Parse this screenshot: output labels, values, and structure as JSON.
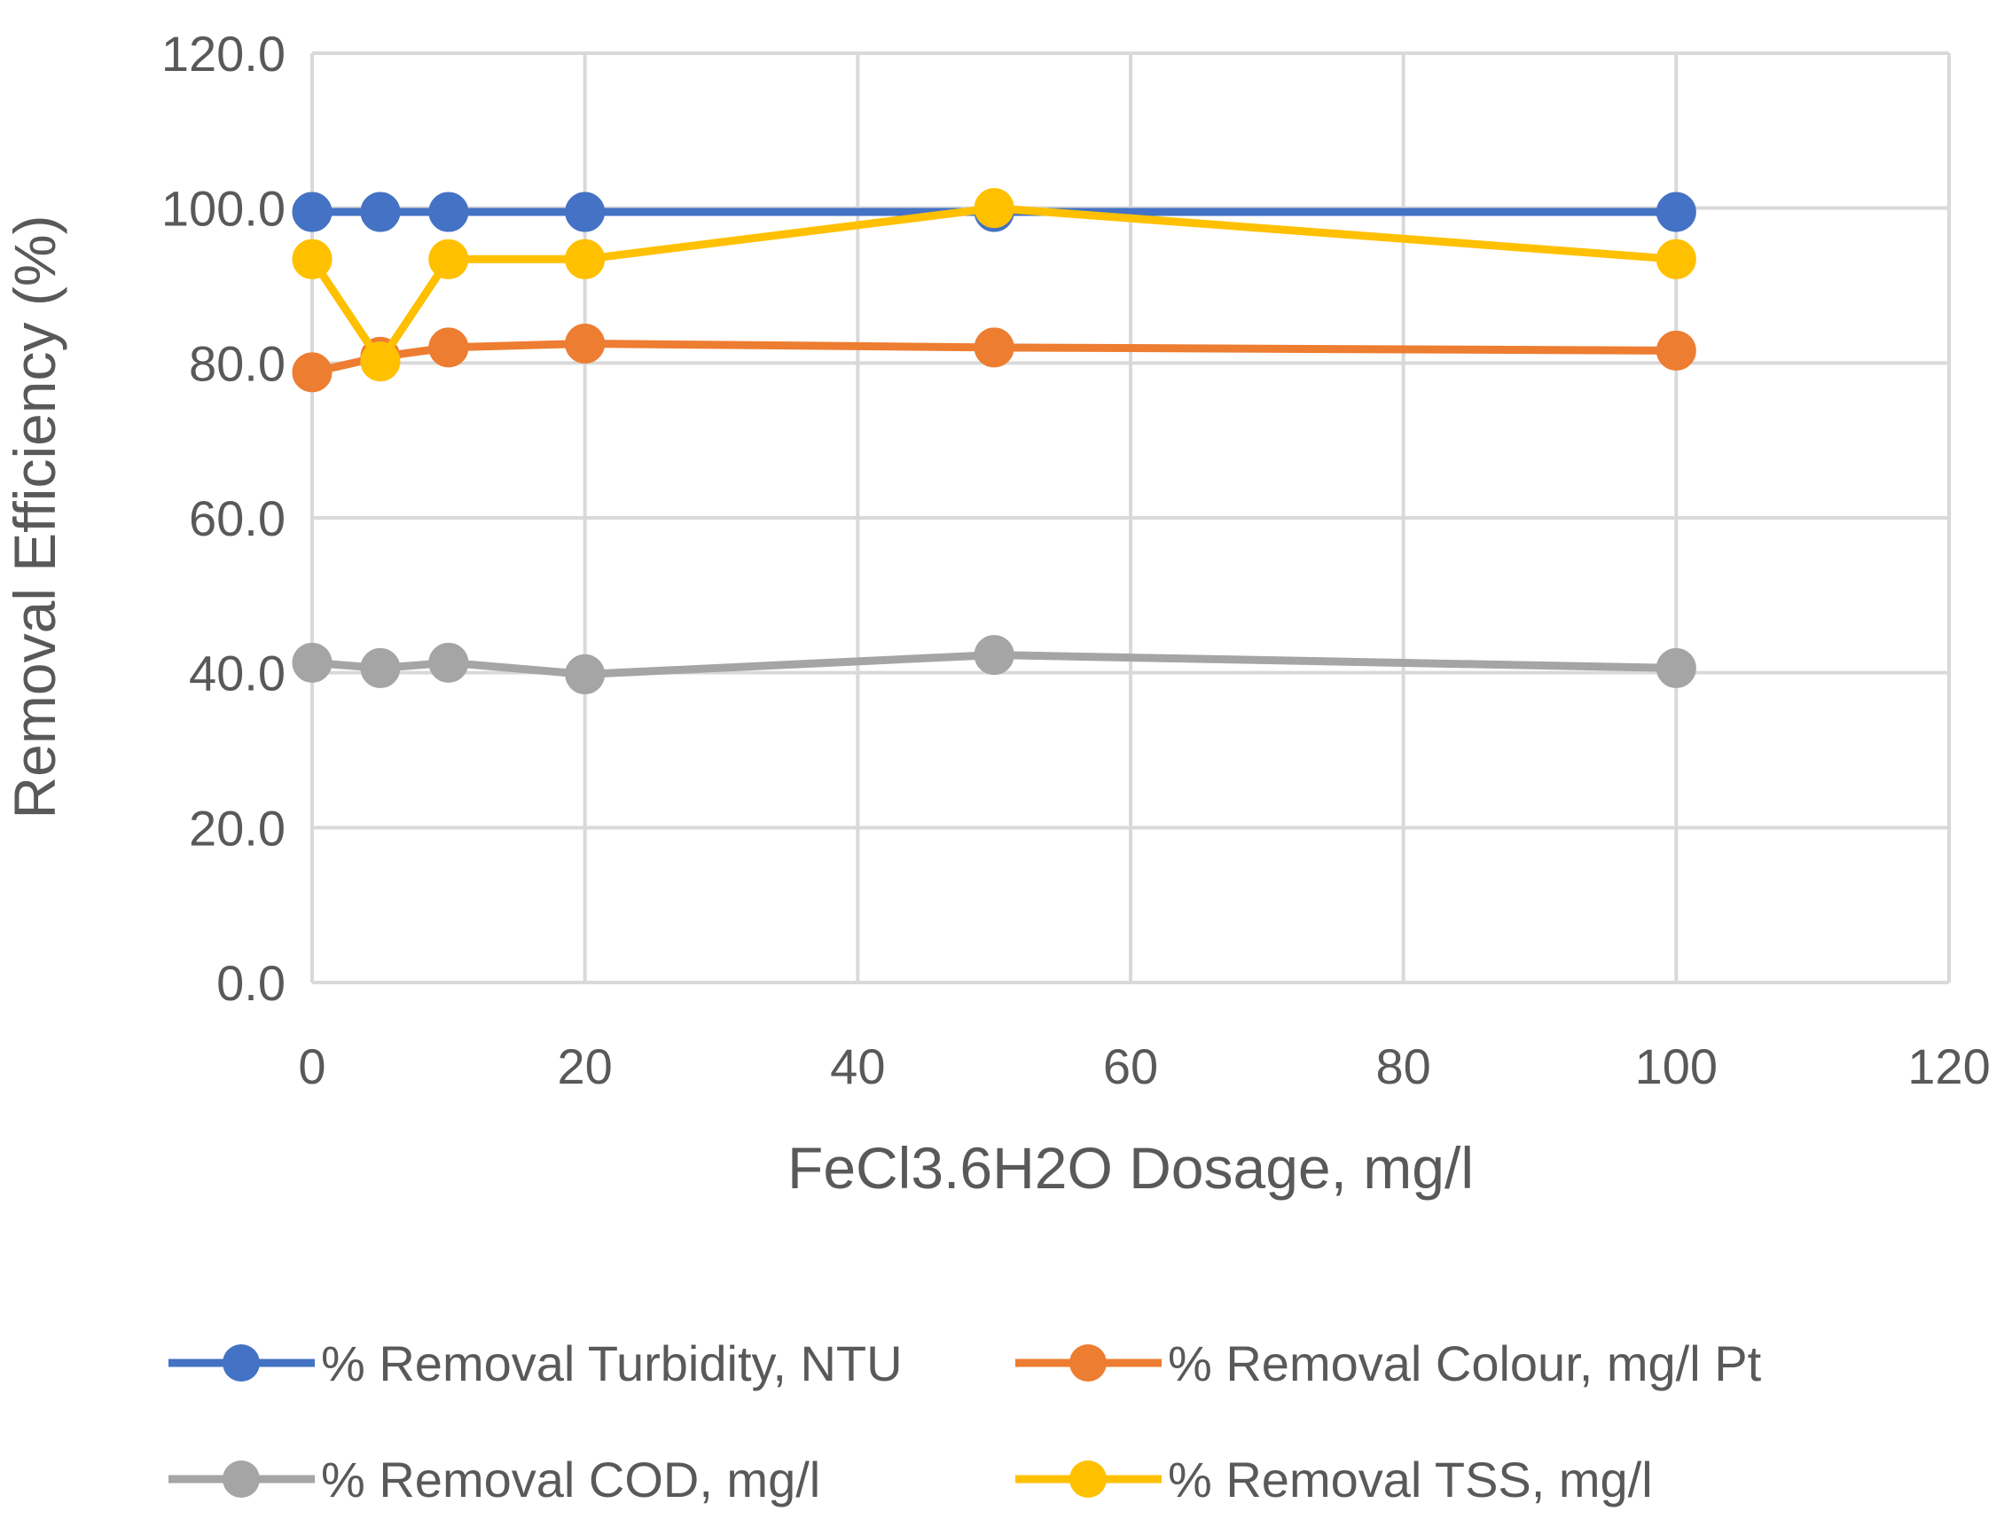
{
  "chart_data": {
    "type": "line",
    "title": "",
    "xlabel": "FeCl3.6H2O Dosage, mg/l",
    "ylabel": "Removal Efficiency (%)",
    "xlim": [
      0,
      120
    ],
    "ylim": [
      0,
      120
    ],
    "x_ticks": [
      "0",
      "20",
      "40",
      "60",
      "80",
      "100",
      "120"
    ],
    "y_ticks": [
      "0.0",
      "20.0",
      "40.0",
      "60.0",
      "80.0",
      "100.0",
      "120.0"
    ],
    "grid": true,
    "legend_position": "bottom",
    "x": [
      0,
      5,
      10,
      20,
      50,
      100
    ],
    "series": [
      {
        "name": "% Removal Turbidity, NTU",
        "color": "#4472C4",
        "values": [
          99.5,
          99.5,
          99.5,
          99.5,
          99.5,
          99.5
        ]
      },
      {
        "name": "% Removal Colour, mg/l Pt",
        "color": "#ED7D31",
        "values": [
          78.8,
          80.8,
          82.0,
          82.5,
          82.0,
          81.6
        ]
      },
      {
        "name": "% Removal COD, mg/l",
        "color": "#A5A5A5",
        "values": [
          41.3,
          40.6,
          41.3,
          39.8,
          42.3,
          40.6
        ]
      },
      {
        "name": "% Removal TSS, mg/l",
        "color": "#FFC000",
        "values": [
          93.4,
          80.2,
          93.4,
          93.4,
          100.0,
          93.4
        ]
      }
    ]
  }
}
